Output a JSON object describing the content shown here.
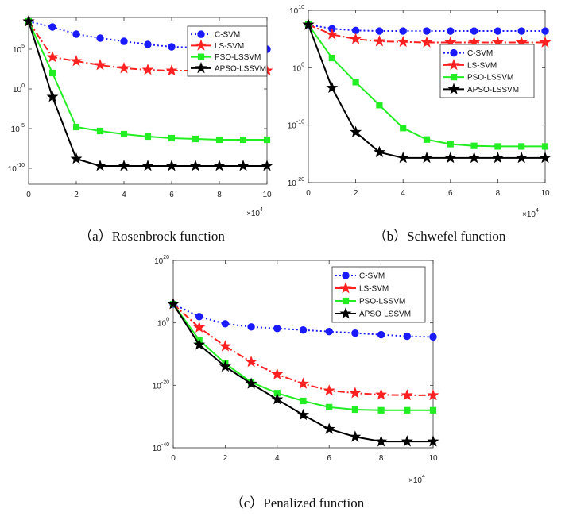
{
  "chart_data": [
    {
      "id": "a",
      "type": "line",
      "title": "(a) Rosenbrock function",
      "caption_label": "（a）",
      "caption_text": "Rosenbrock function",
      "x_multiplier_label": "×10",
      "x_multiplier_exp": "4",
      "x": [
        0,
        1,
        2,
        3,
        4,
        5,
        6,
        7,
        8,
        9,
        10
      ],
      "xlim": [
        0,
        10
      ],
      "x_ticks": [
        0,
        2,
        4,
        6,
        8,
        10
      ],
      "y_scale": "log10",
      "ylim_exp": [
        -12,
        9
      ],
      "y_ticks_exp": [
        5,
        0,
        -5,
        -10
      ],
      "legend_position": "top-right",
      "series": [
        {
          "name": "C-SVM",
          "color": "#1a1aff",
          "dash": "2,3",
          "marker": "circle",
          "log10_values": [
            8.5,
            7.8,
            6.9,
            6.4,
            6.0,
            5.6,
            5.3,
            5.2,
            5.1,
            5.1,
            5.0
          ]
        },
        {
          "name": "LS-SVM",
          "color": "#ff2020",
          "dash": "9,3,2,3",
          "marker": "star",
          "log10_values": [
            8.5,
            4.0,
            3.5,
            3.0,
            2.6,
            2.4,
            2.3,
            2.3,
            2.3,
            2.3,
            2.3
          ]
        },
        {
          "name": "PSO-LSSVM",
          "color": "#22ee22",
          "dash": "",
          "marker": "square",
          "log10_values": [
            8.5,
            2.0,
            -4.8,
            -5.3,
            -5.7,
            -6.0,
            -6.2,
            -6.3,
            -6.4,
            -6.4,
            -6.4
          ]
        },
        {
          "name": "APSO-LSSVM",
          "color": "#000000",
          "dash": "",
          "marker": "star",
          "log10_values": [
            8.5,
            -1.0,
            -8.8,
            -9.7,
            -9.7,
            -9.7,
            -9.7,
            -9.7,
            -9.7,
            -9.7,
            -9.7
          ]
        }
      ]
    },
    {
      "id": "b",
      "type": "line",
      "title": "(b) Schwefel function",
      "caption_label": "（b）",
      "caption_text": "Schwefel function",
      "x_multiplier_label": "×10",
      "x_multiplier_exp": "4",
      "x": [
        0,
        1,
        2,
        3,
        4,
        5,
        6,
        7,
        8,
        9,
        10
      ],
      "xlim": [
        0,
        10
      ],
      "x_ticks": [
        0,
        2,
        4,
        6,
        8,
        10
      ],
      "y_scale": "log10",
      "ylim_exp": [
        -20,
        10
      ],
      "y_ticks_exp": [
        10,
        0,
        -10,
        -20
      ],
      "legend_position": "top-right",
      "series": [
        {
          "name": "C-SVM",
          "color": "#1a1aff",
          "dash": "2,3",
          "marker": "circle",
          "log10_values": [
            7.5,
            6.8,
            6.5,
            6.4,
            6.4,
            6.4,
            6.4,
            6.4,
            6.4,
            6.4,
            6.4
          ]
        },
        {
          "name": "LS-SVM",
          "color": "#ff2020",
          "dash": "9,3,2,3",
          "marker": "star",
          "log10_values": [
            7.5,
            5.8,
            5.0,
            4.6,
            4.5,
            4.4,
            4.4,
            4.4,
            4.4,
            4.4,
            4.4
          ]
        },
        {
          "name": "PSO-LSSVM",
          "color": "#22ee22",
          "dash": "",
          "marker": "square",
          "log10_values": [
            7.5,
            1.7,
            -2.5,
            -6.5,
            -10.5,
            -12.5,
            -13.3,
            -13.6,
            -13.7,
            -13.7,
            -13.7
          ]
        },
        {
          "name": "APSO-LSSVM",
          "color": "#000000",
          "dash": "",
          "marker": "star",
          "log10_values": [
            7.5,
            -3.5,
            -11.2,
            -14.7,
            -15.7,
            -15.7,
            -15.7,
            -15.7,
            -15.7,
            -15.7,
            -15.7
          ]
        }
      ]
    },
    {
      "id": "c",
      "type": "line",
      "title": "(c) Penalized function",
      "caption_label": "（c）",
      "caption_text": "Penalized function",
      "x_multiplier_label": "×10",
      "x_multiplier_exp": "4",
      "x": [
        0,
        1,
        2,
        3,
        4,
        5,
        6,
        7,
        8,
        9,
        10
      ],
      "xlim": [
        0,
        10
      ],
      "x_ticks": [
        0,
        2,
        4,
        6,
        8,
        10
      ],
      "y_scale": "log10",
      "ylim_exp": [
        -40,
        20
      ],
      "y_ticks_exp": [
        20,
        0,
        -20,
        -40
      ],
      "legend_position": "top-right",
      "series": [
        {
          "name": "C-SVM",
          "color": "#1a1aff",
          "dash": "2,3",
          "marker": "circle",
          "log10_values": [
            6.0,
            2.0,
            -0.3,
            -1.3,
            -1.8,
            -2.3,
            -2.8,
            -3.3,
            -3.8,
            -4.3,
            -4.5
          ]
        },
        {
          "name": "LS-SVM",
          "color": "#ff2020",
          "dash": "9,3,2,3",
          "marker": "star",
          "log10_values": [
            6.0,
            -1.5,
            -7.5,
            -12.5,
            -16.5,
            -19.5,
            -21.7,
            -22.5,
            -23.0,
            -23.2,
            -23.2
          ]
        },
        {
          "name": "PSO-LSSVM",
          "color": "#22ee22",
          "dash": "",
          "marker": "square",
          "log10_values": [
            6.0,
            -5.5,
            -13.0,
            -19.0,
            -22.5,
            -25.0,
            -27.0,
            -27.8,
            -28.0,
            -28.0,
            -28.0
          ]
        },
        {
          "name": "APSO-LSSVM",
          "color": "#000000",
          "dash": "",
          "marker": "star",
          "log10_values": [
            6.0,
            -7.0,
            -14.0,
            -19.5,
            -24.5,
            -29.5,
            -34.0,
            -36.5,
            -38.0,
            -38.0,
            -38.0
          ]
        }
      ]
    }
  ]
}
